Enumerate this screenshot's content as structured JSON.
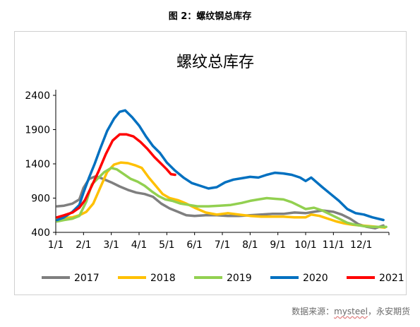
{
  "caption": "图 2：螺纹钢总库存",
  "source": {
    "prefix": "数据来源：",
    "link": "mysteel",
    "suffix": "，永安期货"
  },
  "chart_data": {
    "type": "line",
    "title": "螺纹总库存",
    "xlabel": "",
    "ylabel": "",
    "ylim": [
      400,
      2400
    ],
    "yticks": [
      400,
      900,
      1400,
      1900,
      2400
    ],
    "xlim": [
      1,
      13
    ],
    "xticks": [
      {
        "label": "1/1",
        "value": 1
      },
      {
        "label": "2/1",
        "value": 2
      },
      {
        "label": "3/1",
        "value": 3
      },
      {
        "label": "4/1",
        "value": 4
      },
      {
        "label": "5/1",
        "value": 5
      },
      {
        "label": "6/1",
        "value": 6
      },
      {
        "label": "7/1",
        "value": 7
      },
      {
        "label": "8/1",
        "value": 8
      },
      {
        "label": "9/1",
        "value": 9
      },
      {
        "label": "10/1",
        "value": 10
      },
      {
        "label": "11/1",
        "value": 11
      },
      {
        "label": "12/1",
        "value": 12
      }
    ],
    "grid": false,
    "legend_position": "bottom",
    "series": [
      {
        "name": "2017",
        "color": "#7f7f7f",
        "x": [
          1.05,
          1.3,
          1.6,
          1.85,
          2.0,
          2.2,
          2.45,
          2.7,
          3.0,
          3.3,
          3.6,
          3.9,
          4.2,
          4.5,
          4.8,
          5.1,
          5.4,
          5.7,
          6.0,
          6.4,
          6.8,
          7.2,
          7.6,
          8.0,
          8.4,
          8.8,
          9.2,
          9.6,
          10.0,
          10.3,
          10.6,
          11.0,
          11.3,
          11.6,
          11.9,
          12.2,
          12.5,
          12.8
        ],
        "y": [
          780,
          790,
          820,
          880,
          1050,
          1180,
          1220,
          1180,
          1130,
          1070,
          1020,
          980,
          960,
          920,
          820,
          750,
          700,
          650,
          640,
          650,
          650,
          640,
          640,
          650,
          660,
          670,
          670,
          690,
          680,
          700,
          720,
          700,
          660,
          600,
          520,
          480,
          460,
          500
        ]
      },
      {
        "name": "2018",
        "color": "#ffc000",
        "x": [
          1.05,
          1.3,
          1.6,
          1.85,
          2.1,
          2.35,
          2.6,
          2.85,
          3.1,
          3.35,
          3.6,
          3.85,
          4.1,
          4.35,
          4.6,
          4.85,
          5.1,
          5.4,
          5.7,
          6.0,
          6.4,
          6.8,
          7.2,
          7.6,
          8.0,
          8.4,
          8.8,
          9.2,
          9.6,
          10.0,
          10.2,
          10.5,
          10.8,
          11.1,
          11.4,
          11.7,
          12.0,
          12.3,
          12.6,
          12.85
        ],
        "y": [
          590,
          610,
          620,
          650,
          700,
          820,
          1050,
          1280,
          1390,
          1420,
          1410,
          1380,
          1340,
          1200,
          1080,
          960,
          900,
          870,
          820,
          760,
          690,
          660,
          680,
          660,
          640,
          630,
          630,
          630,
          620,
          620,
          660,
          640,
          600,
          560,
          530,
          510,
          500,
          490,
          480,
          470
        ]
      },
      {
        "name": "2019",
        "color": "#92d050",
        "x": [
          1.05,
          1.3,
          1.6,
          1.85,
          2.1,
          2.3,
          2.5,
          2.75,
          3.0,
          3.2,
          3.45,
          3.7,
          3.95,
          4.2,
          4.45,
          4.7,
          4.95,
          5.2,
          5.5,
          5.8,
          6.1,
          6.5,
          6.9,
          7.3,
          7.7,
          8.0,
          8.3,
          8.6,
          8.9,
          9.2,
          9.5,
          9.8,
          10.0,
          10.3,
          10.6,
          10.9,
          11.2,
          11.5,
          11.8,
          12.1,
          12.4,
          12.7,
          12.9
        ],
        "y": [
          560,
          580,
          600,
          640,
          850,
          1100,
          1180,
          1280,
          1340,
          1320,
          1250,
          1180,
          1140,
          1080,
          1000,
          930,
          880,
          860,
          820,
          800,
          780,
          780,
          790,
          800,
          830,
          860,
          880,
          900,
          890,
          880,
          840,
          780,
          740,
          760,
          720,
          660,
          600,
          540,
          510,
          490,
          480,
          480,
          480
        ]
      },
      {
        "name": "2020",
        "color": "#0070c0",
        "x": [
          1.05,
          1.3,
          1.6,
          1.85,
          2.0,
          2.2,
          2.4,
          2.6,
          2.85,
          3.1,
          3.3,
          3.5,
          3.75,
          4.0,
          4.25,
          4.5,
          4.75,
          5.0,
          5.3,
          5.6,
          5.9,
          6.2,
          6.5,
          6.8,
          7.1,
          7.4,
          7.7,
          8.0,
          8.3,
          8.6,
          8.9,
          9.2,
          9.5,
          9.8,
          10.0,
          10.2,
          10.4,
          10.6,
          10.9,
          11.2,
          11.5,
          11.8,
          12.1,
          12.4,
          12.8
        ],
        "y": [
          580,
          620,
          700,
          800,
          980,
          1200,
          1400,
          1620,
          1880,
          2060,
          2160,
          2180,
          2080,
          1960,
          1800,
          1660,
          1560,
          1420,
          1300,
          1200,
          1120,
          1080,
          1040,
          1060,
          1130,
          1170,
          1190,
          1210,
          1200,
          1240,
          1270,
          1260,
          1240,
          1200,
          1150,
          1200,
          1130,
          1060,
          960,
          860,
          740,
          680,
          660,
          620,
          580
        ]
      },
      {
        "name": "2021",
        "color": "#ff0000",
        "x": [
          1.05,
          1.3,
          1.6,
          1.85,
          2.05,
          2.3,
          2.55,
          2.8,
          3.05,
          3.3,
          3.55,
          3.8,
          4.05,
          4.3,
          4.55,
          4.8,
          5.0,
          5.15,
          5.3
        ],
        "y": [
          620,
          650,
          690,
          760,
          870,
          1080,
          1300,
          1540,
          1740,
          1830,
          1830,
          1800,
          1720,
          1620,
          1500,
          1400,
          1320,
          1250,
          1240
        ]
      }
    ]
  }
}
